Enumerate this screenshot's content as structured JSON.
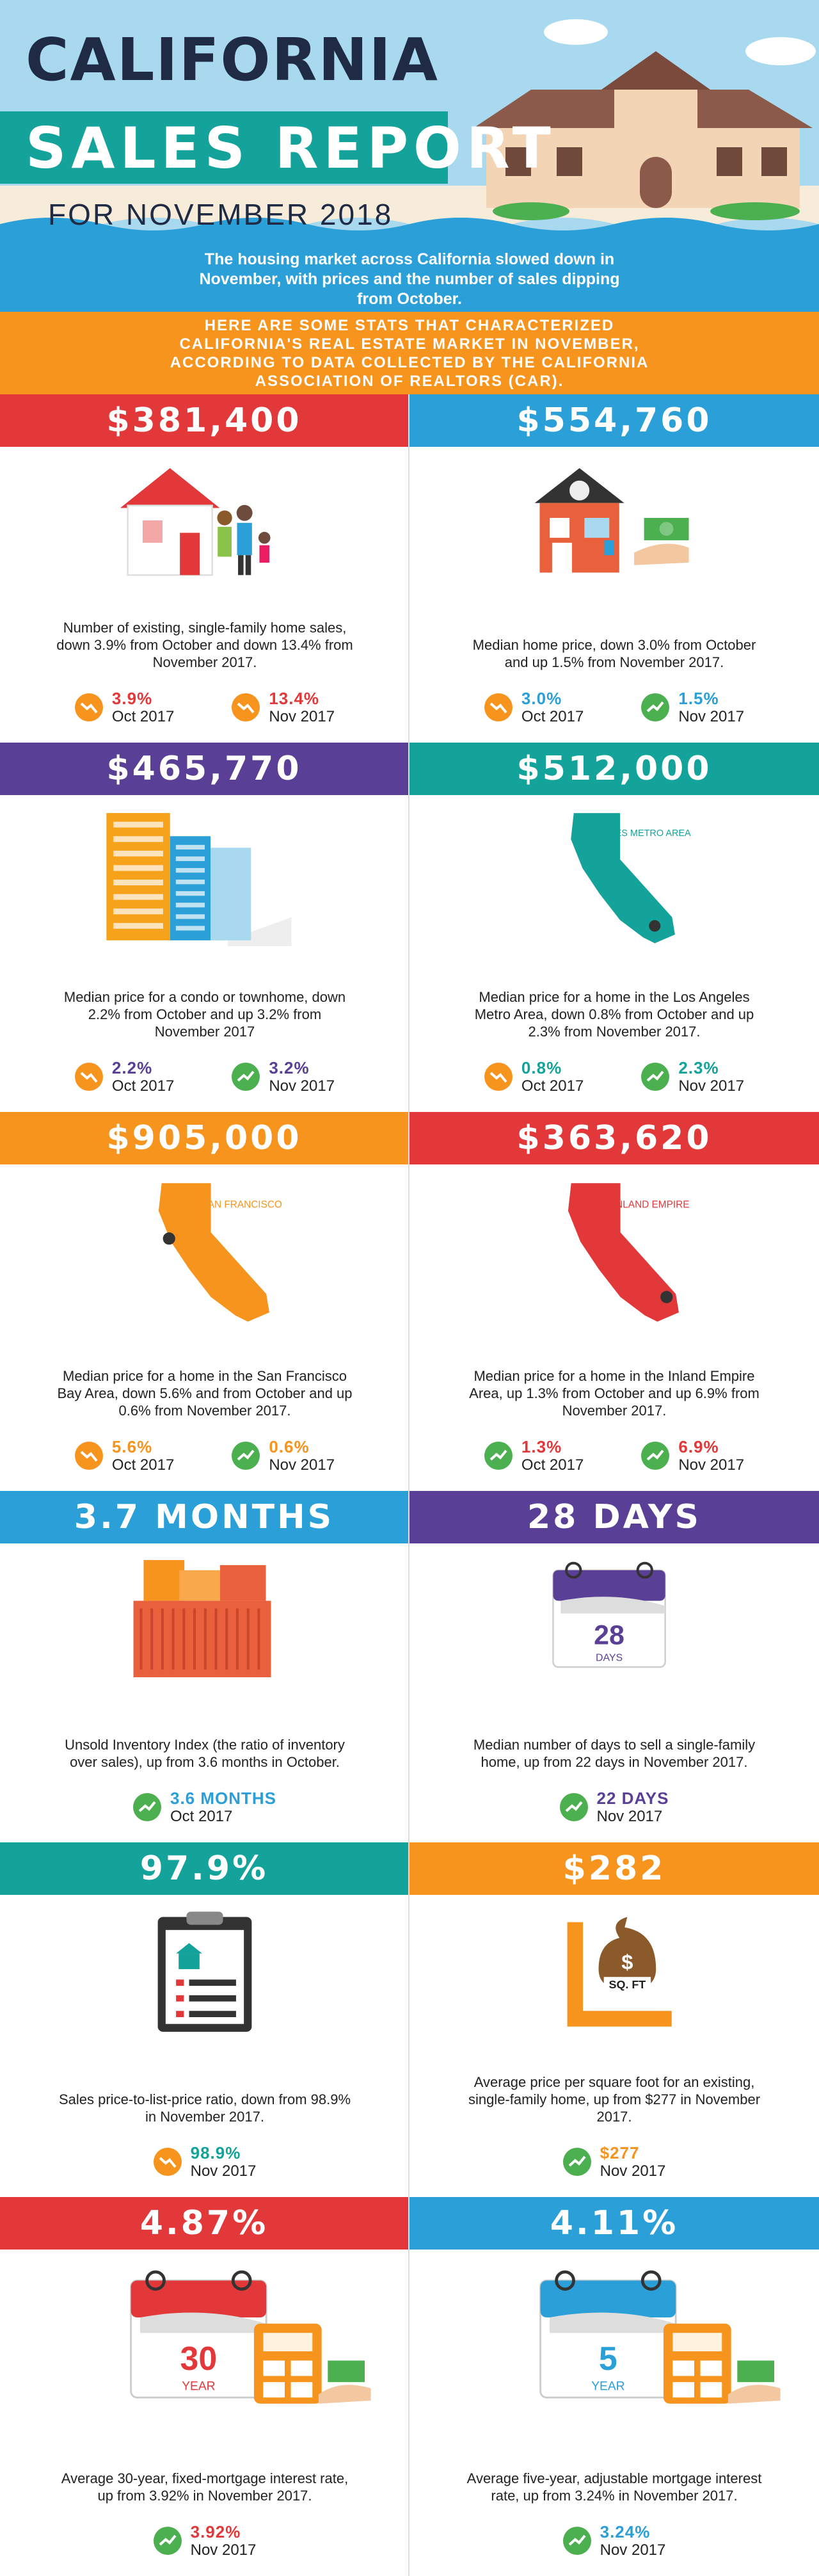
{
  "header": {
    "title": "CALIFORNIA",
    "subtitle": "SALES REPORT",
    "date": "FOR NOVEMBER 2018"
  },
  "intro": "The housing market across California slowed down in November, with prices and the number of sales dipping from October.",
  "banner": "HERE ARE SOME STATS THAT CHARACTERIZED CALIFORNIA'S REAL ESTATE MARKET IN NOVEMBER, ACCORDING TO DATA COLLECTED BY THE CALIFORNIA ASSOCIATION OF REALTORS (CAR).",
  "cards": [
    {
      "headline": "$381,400",
      "color": "#e2383a",
      "description": "Number of existing, single-family home sales, down 3.9% from October and down 13.4% from November 2017.",
      "stats": [
        {
          "value": "3.9%",
          "label": "Oct 2017",
          "direction": "down"
        },
        {
          "value": "13.4%",
          "label": "Nov 2017",
          "direction": "down"
        }
      ]
    },
    {
      "headline": "$554,760",
      "color": "#2a9fd8",
      "description": "Median home price, down 3.0% from October and up 1.5% from November 2017.",
      "stats": [
        {
          "value": "3.0%",
          "label": "Oct 2017",
          "direction": "down"
        },
        {
          "value": "1.5%",
          "label": "Nov 2017",
          "direction": "up"
        }
      ]
    },
    {
      "headline": "$465,770",
      "color": "#5a3f96",
      "description": "Median price for a condo or townhome, down 2.2% from October and up 3.2% from November 2017",
      "stats": [
        {
          "value": "2.2%",
          "label": "Oct 2017",
          "direction": "down"
        },
        {
          "value": "3.2%",
          "label": "Nov 2017",
          "direction": "up"
        }
      ]
    },
    {
      "headline": "$512,000",
      "color": "#14a39a",
      "map_label": "ANGELES METRO AREA",
      "description": "Median price for a home in the Los Angeles Metro Area, down 0.8% from October and up 2.3% from November 2017.",
      "stats": [
        {
          "value": "0.8%",
          "label": "Oct 2017",
          "direction": "down"
        },
        {
          "value": "2.3%",
          "label": "Nov 2017",
          "direction": "up"
        }
      ]
    },
    {
      "headline": "$905,000",
      "color": "#f7941d",
      "map_label": "SAN FRANCISCO",
      "description": "Median price for a home in the San Francisco Bay Area, down 5.6% and from October and up 0.6% from November 2017.",
      "stats": [
        {
          "value": "5.6%",
          "label": "Oct 2017",
          "direction": "down"
        },
        {
          "value": "0.6%",
          "label": "Nov 2017",
          "direction": "up"
        }
      ]
    },
    {
      "headline": "$363,620",
      "color": "#e2383a",
      "map_label": "INLAND EMPIRE",
      "description": "Median price for a home in the Inland Empire Area, up 1.3% from October and up 6.9% from November 2017.",
      "stats": [
        {
          "value": "1.3%",
          "label": "Oct 2017",
          "direction": "up"
        },
        {
          "value": "6.9%",
          "label": "Nov 2017",
          "direction": "up"
        }
      ]
    },
    {
      "headline": "3.7 MONTHS",
      "color": "#2a9fd8",
      "description": "Unsold Inventory Index (the ratio of inventory over sales), up from 3.6 months in October.",
      "stats": [
        {
          "value": "3.6 MONTHS",
          "label": "Oct 2017",
          "direction": "up"
        }
      ]
    },
    {
      "headline": "28 DAYS",
      "color": "#5a3f96",
      "calendar_number": "28",
      "calendar_unit": "DAYS",
      "description": "Median number of days to sell a single-family home, up from 22 days in November 2017.",
      "stats": [
        {
          "value": "22 DAYS",
          "label": "Nov 2017",
          "direction": "up"
        }
      ]
    },
    {
      "headline": "97.9%",
      "color": "#14a39a",
      "description": "Sales price-to-list-price ratio, down from 98.9% in November 2017.",
      "stats": [
        {
          "value": "98.9%",
          "label": "Nov 2017",
          "direction": "down"
        }
      ]
    },
    {
      "headline": "$282",
      "color": "#f7941d",
      "badge": "SQ. FT",
      "description": "Average price per square foot for an existing, single-family home, up from $277 in November 2017.",
      "stats": [
        {
          "value": "$277",
          "label": "Nov 2017",
          "direction": "up"
        }
      ]
    },
    {
      "headline": "4.87%",
      "color": "#e2383a",
      "calendar_number": "30",
      "calendar_unit": "YEAR",
      "description": "Average 30-year, fixed-mortgage interest rate, up from 3.92% in November 2017.",
      "stats": [
        {
          "value": "3.92%",
          "label": "Nov 2017",
          "direction": "up"
        }
      ]
    },
    {
      "headline": "4.11%",
      "color": "#2a9fd8",
      "calendar_number": "5",
      "calendar_unit": "YEAR",
      "description": "Average five-year, adjustable mortgage interest rate, up from 3.24% in November 2017.",
      "stats": [
        {
          "value": "3.24%",
          "label": "Nov 2017",
          "direction": "up"
        }
      ]
    }
  ]
}
